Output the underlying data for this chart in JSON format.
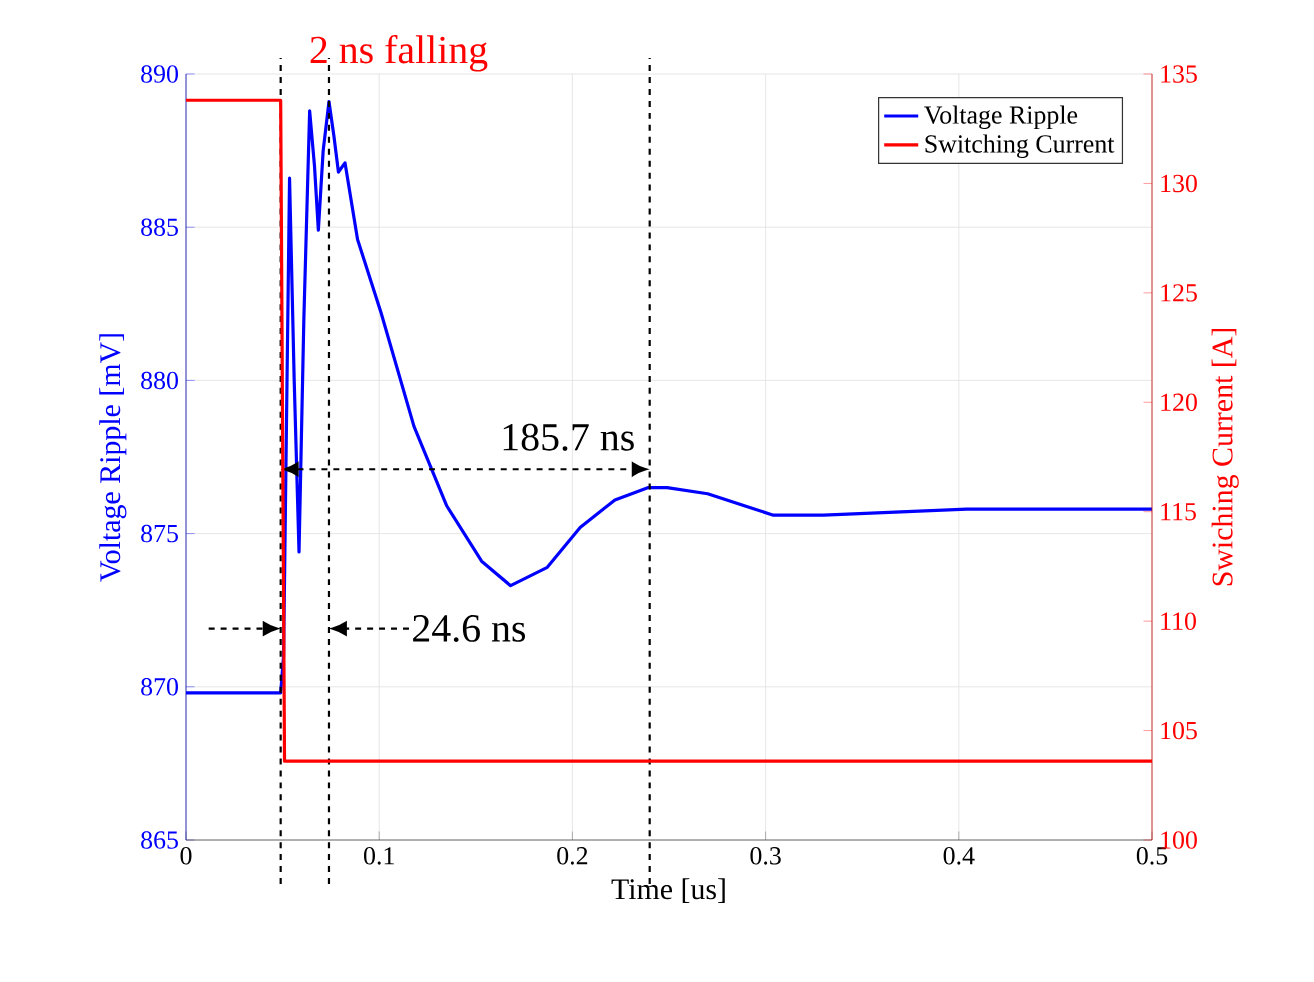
{
  "chart_data": {
    "type": "line",
    "xlabel": "Time [us]",
    "ylabel": "Voltage Ripple [mV]",
    "y2label": "Swiching Current [A]",
    "xlim": [
      0,
      0.5
    ],
    "xticks": [
      0,
      0.1,
      0.2,
      0.3,
      0.4,
      0.5
    ],
    "ylim": [
      865,
      890
    ],
    "yticks": [
      865,
      870,
      875,
      880,
      885,
      890
    ],
    "y2lim": [
      100,
      135
    ],
    "y2ticks": [
      100,
      105,
      110,
      115,
      120,
      125,
      130,
      135
    ],
    "grid": true,
    "legend": "top right",
    "line_style": "solid",
    "marker": "none",
    "series": [
      {
        "name": "Voltage Ripple",
        "color": "#0000ff",
        "x": [
          0,
          0.049,
          0.0505,
          0.0536,
          0.056,
          0.0585,
          0.061,
          0.064,
          0.0665,
          0.0685,
          0.071,
          0.074,
          0.0765,
          0.0789,
          0.0823,
          0.0888,
          0.101,
          0.118,
          0.135,
          0.153,
          0.168,
          0.187,
          0.204,
          0.222,
          0.239,
          0.249,
          0.27,
          0.304,
          0.33,
          0.367,
          0.404,
          0.441,
          0.5
        ],
        "values": [
          869.8,
          869.8,
          871,
          886.6,
          880,
          874.4,
          882,
          888.8,
          887,
          884.9,
          887.5,
          889.1,
          888,
          886.8,
          887.1,
          884.6,
          882.2,
          878.5,
          875.9,
          874.1,
          873.3,
          873.9,
          875.2,
          876.1,
          876.5,
          876.5,
          876.3,
          875.6,
          875.6,
          875.7,
          875.8,
          875.8,
          875.8
        ]
      },
      {
        "name": "Switching Current",
        "color": "#ff0000",
        "axis": "y2",
        "x": [
          0,
          0.049,
          0.051,
          0.5
        ],
        "values": [
          133.8,
          133.8,
          103.6,
          103.6
        ]
      }
    ],
    "ref_lines": [
      {
        "axis": "x",
        "value": 0.049,
        "color": "#000000",
        "line_style": "dashed"
      },
      {
        "axis": "x",
        "value": 0.074,
        "color": "#000000",
        "line_style": "dashed"
      },
      {
        "axis": "x",
        "value": 0.24,
        "color": "#000000",
        "line_style": "dashed"
      }
    ],
    "annotations": [
      "2 ns falling",
      {
        "text": "185.7 ns",
        "x": 0.24,
        "y": 877.1
      },
      {
        "text": "24.6 ns",
        "x": 0.074,
        "y": 871.9
      }
    ]
  }
}
